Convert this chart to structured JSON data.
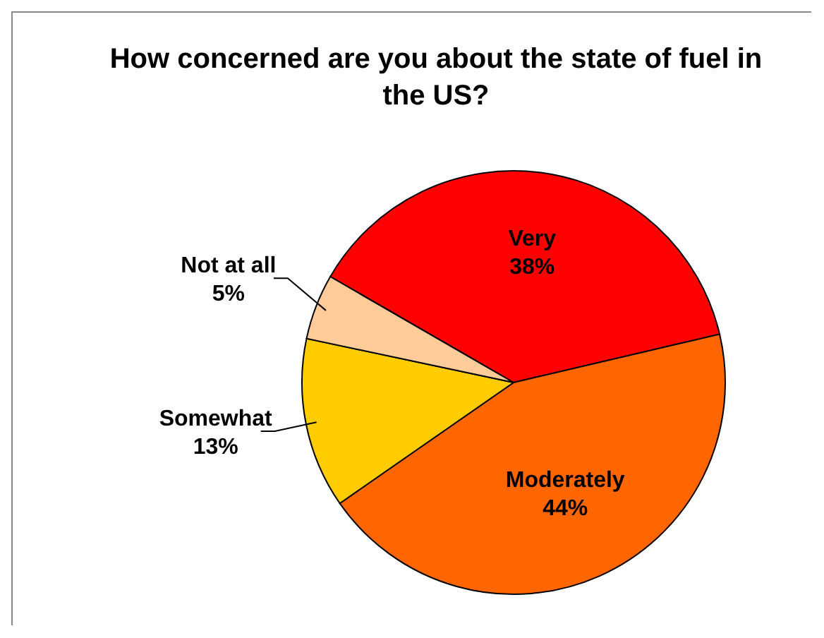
{
  "chart_data": {
    "type": "pie",
    "title": "How concerned are you about the state of fuel in the US?",
    "categories": [
      "Very",
      "Moderately",
      "Somewhat",
      "Not at all"
    ],
    "values": [
      38,
      44,
      13,
      5
    ],
    "value_labels": [
      "38%",
      "44%",
      "13%",
      "5%"
    ],
    "colors": [
      "#ff0000",
      "#ff6600",
      "#ffcc00",
      "#ffcc99"
    ]
  }
}
